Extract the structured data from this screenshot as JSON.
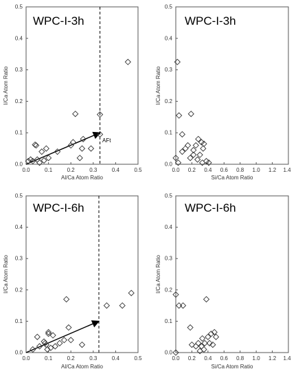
{
  "chart_data": [
    {
      "type": "scatter",
      "title": "WPC-I-3h",
      "xlabel": "Al/Ca Atom Ratio",
      "ylabel": "I/Ca Atom Ratio",
      "xlim": [
        0,
        0.5
      ],
      "ylim": [
        0,
        0.5
      ],
      "xticks": [
        "0.0",
        "0.1",
        "0.2",
        "0.3",
        "0.4",
        "0.5"
      ],
      "yticks": [
        "0.0",
        "0.1",
        "0.2",
        "0.3",
        "0.4",
        "0.5"
      ],
      "grid": false,
      "marker": "diamond",
      "vline": 0.33,
      "arrow": {
        "from": [
          0,
          0
        ],
        "to": [
          0.33,
          0.1
        ]
      },
      "annotation": {
        "text": "AFt",
        "at": [
          0.34,
          0.085
        ]
      },
      "points": [
        [
          0.01,
          0.01
        ],
        [
          0.02,
          0.015
        ],
        [
          0.03,
          0.01
        ],
        [
          0.04,
          0.062
        ],
        [
          0.045,
          0.06
        ],
        [
          0.05,
          0.015
        ],
        [
          0.06,
          0.005
        ],
        [
          0.07,
          0.04
        ],
        [
          0.08,
          0.012
        ],
        [
          0.09,
          0.05
        ],
        [
          0.1,
          0.02
        ],
        [
          0.14,
          0.04
        ],
        [
          0.2,
          0.06
        ],
        [
          0.21,
          0.07
        ],
        [
          0.22,
          0.16
        ],
        [
          0.24,
          0.02
        ],
        [
          0.25,
          0.05
        ],
        [
          0.255,
          0.08
        ],
        [
          0.29,
          0.05
        ],
        [
          0.33,
          0.095
        ],
        [
          0.33,
          0.158
        ],
        [
          0.455,
          0.325
        ]
      ]
    },
    {
      "type": "scatter",
      "title": "WPC-I-3h",
      "xlabel": "Si/Ca Atom Ratio",
      "ylabel": "I/Ca Atom Ratio",
      "xlim": [
        0,
        1.4
      ],
      "ylim": [
        0,
        0.5
      ],
      "xticks": [
        "0.0",
        "0.2",
        "0.4",
        "0.6",
        "0.8",
        "1.0",
        "1.2",
        "1.4"
      ],
      "yticks": [
        "0.0",
        "0.1",
        "0.2",
        "0.3",
        "0.4",
        "0.5"
      ],
      "grid": false,
      "marker": "diamond",
      "points": [
        [
          0.0,
          0.02
        ],
        [
          0.02,
          0.325
        ],
        [
          0.03,
          0.005
        ],
        [
          0.04,
          0.155
        ],
        [
          0.08,
          0.04
        ],
        [
          0.08,
          0.095
        ],
        [
          0.12,
          0.05
        ],
        [
          0.15,
          0.06
        ],
        [
          0.18,
          0.02
        ],
        [
          0.19,
          0.16
        ],
        [
          0.22,
          0.03
        ],
        [
          0.22,
          0.045
        ],
        [
          0.25,
          0.06
        ],
        [
          0.27,
          0.015
        ],
        [
          0.28,
          0.08
        ],
        [
          0.3,
          0.03
        ],
        [
          0.32,
          0.07
        ],
        [
          0.33,
          0.005
        ],
        [
          0.34,
          0.05
        ],
        [
          0.35,
          0.065
        ],
        [
          0.38,
          0.01
        ],
        [
          0.41,
          0.005
        ]
      ]
    },
    {
      "type": "scatter",
      "title": "WPC-I-6h",
      "xlabel": "Al/Ca Atom Ratio",
      "ylabel": "I/Ca Atom Ratio",
      "xlim": [
        0,
        0.5
      ],
      "ylim": [
        0,
        0.5
      ],
      "xticks": [
        "0.0",
        "0.1",
        "0.2",
        "0.3",
        "0.4",
        "0.5"
      ],
      "yticks": [
        "0.0",
        "0.1",
        "0.2",
        "0.3",
        "0.4",
        "0.5"
      ],
      "grid": false,
      "marker": "diamond",
      "vline": 0.325,
      "arrow": {
        "from": [
          0,
          0
        ],
        "to": [
          0.325,
          0.1
        ]
      },
      "points": [
        [
          0.03,
          0.01
        ],
        [
          0.05,
          0.05
        ],
        [
          0.06,
          0.02
        ],
        [
          0.08,
          0.035
        ],
        [
          0.085,
          0.03
        ],
        [
          0.09,
          0.025
        ],
        [
          0.095,
          0.01
        ],
        [
          0.1,
          0.06
        ],
        [
          0.1,
          0.065
        ],
        [
          0.11,
          0.015
        ],
        [
          0.12,
          0.055
        ],
        [
          0.13,
          0.02
        ],
        [
          0.15,
          0.03
        ],
        [
          0.17,
          0.04
        ],
        [
          0.18,
          0.17
        ],
        [
          0.19,
          0.08
        ],
        [
          0.2,
          0.04
        ],
        [
          0.25,
          0.025
        ],
        [
          0.36,
          0.15
        ],
        [
          0.43,
          0.15
        ],
        [
          0.47,
          0.19
        ]
      ]
    },
    {
      "type": "scatter",
      "title": "WPC-I-6h",
      "xlabel": "Si/Ca Atom Ratio",
      "ylabel": "I/Ca Atom Ratio",
      "xlim": [
        0,
        1.4
      ],
      "ylim": [
        0,
        0.5
      ],
      "xticks": [
        "0.0",
        "0.2",
        "0.4",
        "0.6",
        "0.8",
        "1.0",
        "1.2",
        "1.4"
      ],
      "yticks": [
        "0.0",
        "0.1",
        "0.2",
        "0.3",
        "0.4",
        "0.5"
      ],
      "grid": false,
      "marker": "diamond",
      "points": [
        [
          0.0,
          0.0
        ],
        [
          0.0,
          0.185
        ],
        [
          0.04,
          0.15
        ],
        [
          0.09,
          0.15
        ],
        [
          0.18,
          0.08
        ],
        [
          0.2,
          0.025
        ],
        [
          0.25,
          0.02
        ],
        [
          0.28,
          0.03
        ],
        [
          0.3,
          0.005
        ],
        [
          0.32,
          0.02
        ],
        [
          0.33,
          0.045
        ],
        [
          0.35,
          0.01
        ],
        [
          0.36,
          0.03
        ],
        [
          0.38,
          0.17
        ],
        [
          0.4,
          0.05
        ],
        [
          0.42,
          0.03
        ],
        [
          0.44,
          0.06
        ],
        [
          0.46,
          0.025
        ],
        [
          0.48,
          0.065
        ],
        [
          0.5,
          0.05
        ]
      ]
    }
  ]
}
